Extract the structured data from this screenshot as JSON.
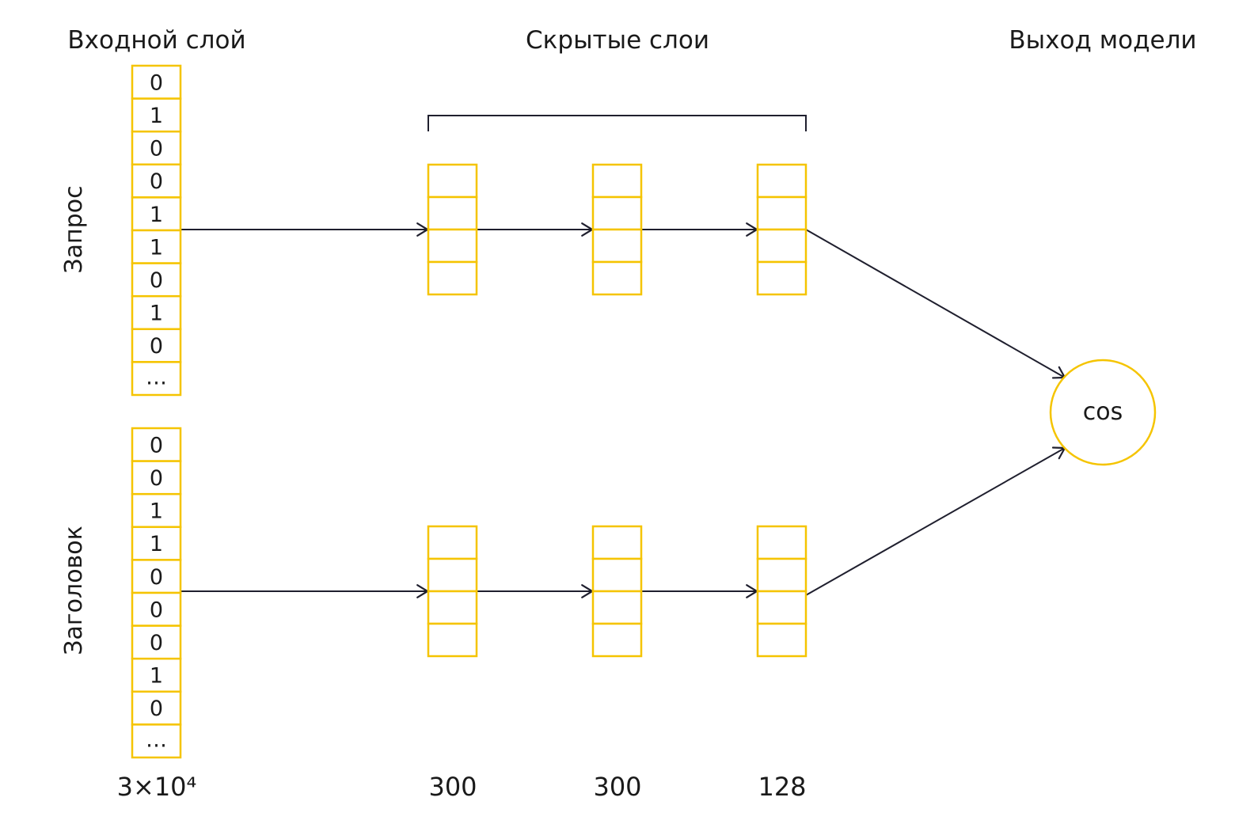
{
  "headers": {
    "input_layer": "Входной слой",
    "hidden_layers": "Скрытые слои",
    "model_output": "Выход модели"
  },
  "branches": [
    {
      "label": "Запрос",
      "values": [
        "0",
        "1",
        "0",
        "0",
        "1",
        "1",
        "0",
        "1",
        "0",
        "..."
      ]
    },
    {
      "label": "Заголовок",
      "values": [
        "0",
        "0",
        "1",
        "1",
        "0",
        "0",
        "0",
        "1",
        "0",
        "..."
      ]
    }
  ],
  "sizes": {
    "input": "3×10⁴",
    "hidden1": "300",
    "hidden2": "300",
    "hidden3": "128"
  },
  "output_node": "cos",
  "colors": {
    "accent": "#f5c400",
    "line": "#1f1f2e"
  }
}
